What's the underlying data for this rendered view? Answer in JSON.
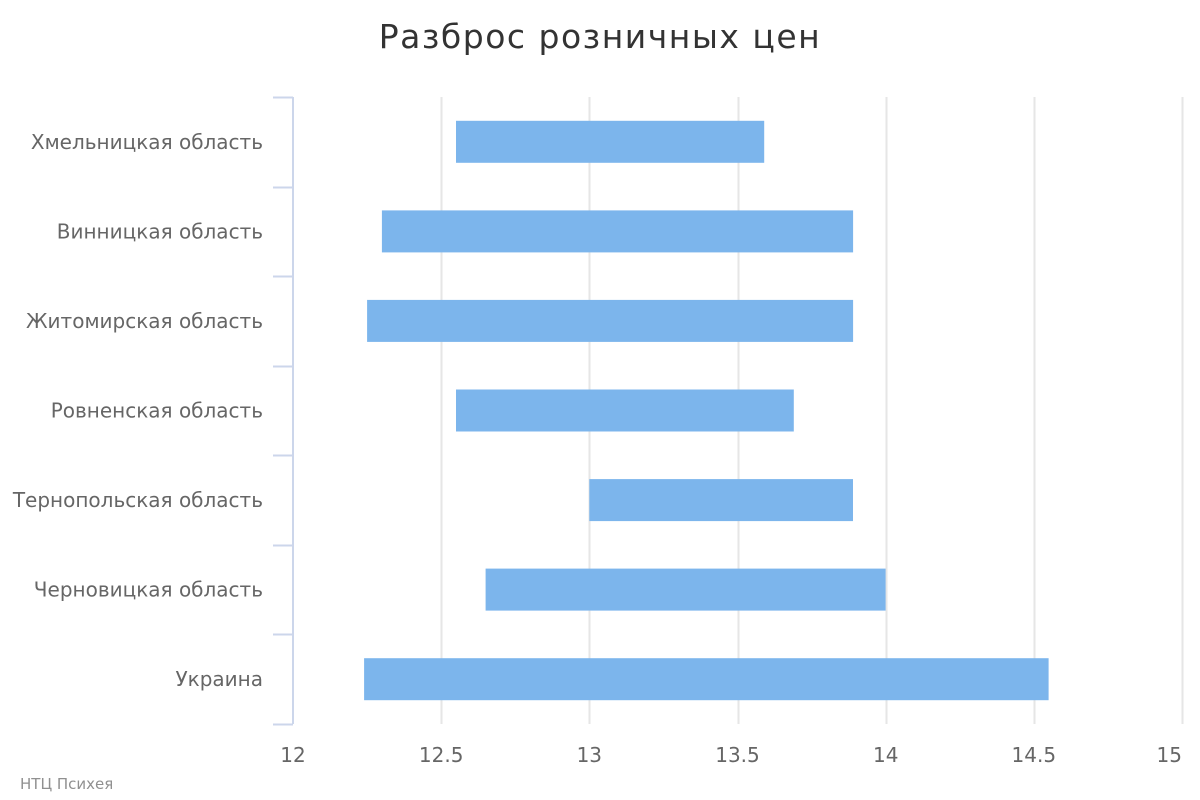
{
  "chart_data": {
    "type": "bar",
    "orientation": "horizontal",
    "subtype": "floating-range",
    "title": "Разброс розничных цен",
    "credit": "НТЦ Психея",
    "categories": [
      "Хмельницкая область",
      "Винницкая область",
      "Житомирская область",
      "Ровненская область",
      "Тернопольская область",
      "Черновицкая область",
      "Украина"
    ],
    "series": [
      {
        "ranges": [
          [
            12.55,
            13.59
          ],
          [
            12.3,
            13.89
          ],
          [
            12.25,
            13.89
          ],
          [
            12.55,
            13.69
          ],
          [
            13.0,
            13.89
          ],
          [
            12.65,
            14.0
          ],
          [
            12.24,
            14.55
          ]
        ],
        "color": "#7cb5ec"
      }
    ],
    "xlim": [
      12,
      15
    ],
    "xticks": [
      12,
      12.5,
      13,
      13.5,
      14,
      14.5,
      15
    ],
    "xtick_labels": [
      "12",
      "12.5",
      "13",
      "13.5",
      "14",
      "14.5",
      "15"
    ],
    "xlabel": "",
    "ylabel": "",
    "grid": true,
    "legend": "none",
    "colors": {
      "bar": "#7cb5ec",
      "grid": "#e6e6e6",
      "axis": "#ccd6eb",
      "title": "#333333",
      "labels": "#666666",
      "credit": "#909090"
    }
  }
}
